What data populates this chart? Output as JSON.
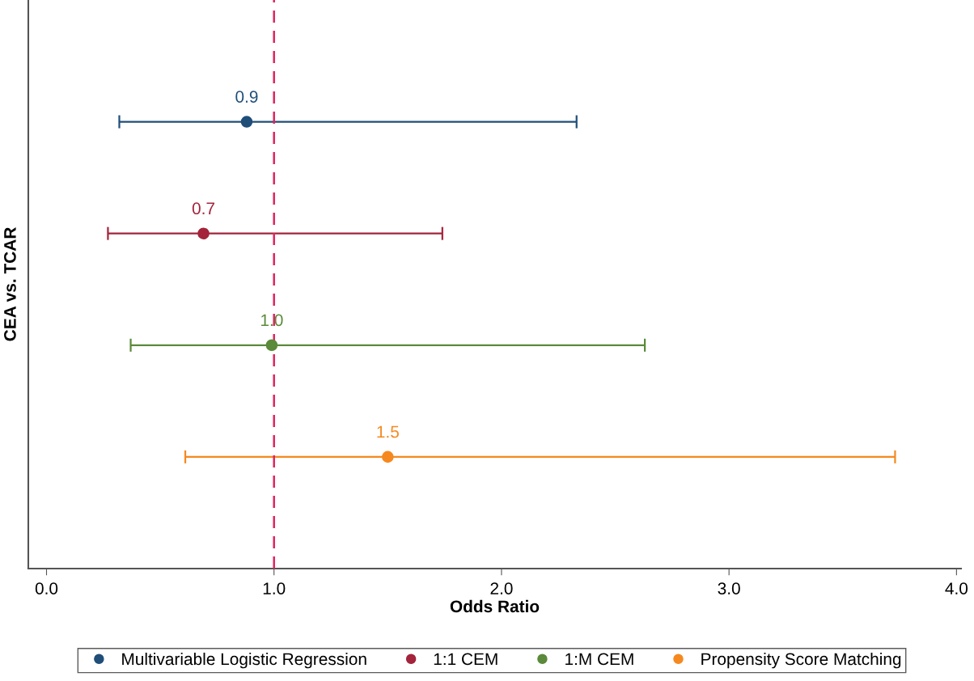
{
  "chart_data": {
    "type": "scatter",
    "orientation": "horizontal",
    "xlabel": "Odds Ratio",
    "ylabel": "CEA vs. TCAR",
    "categories": [
      null,
      null,
      null,
      null
    ],
    "series": [
      {
        "name": "Multivariable Logistic Regression",
        "color": "#1f4e79",
        "values": [
          0.88,
          null,
          null,
          null
        ],
        "errors": [
          [
            0.32,
            2.33
          ],
          null,
          null,
          null
        ],
        "value_labels": [
          "0.9",
          null,
          null,
          null
        ]
      },
      {
        "name": "1:1 CEM",
        "color": "#a3243b",
        "values": [
          null,
          0.69,
          null,
          null
        ],
        "errors": [
          null,
          [
            0.27,
            1.74
          ],
          null,
          null
        ],
        "value_labels": [
          null,
          "0.7",
          null,
          null
        ]
      },
      {
        "name": "1:M CEM",
        "color": "#5b8a3a",
        "values": [
          null,
          null,
          0.99,
          null
        ],
        "errors": [
          null,
          null,
          [
            0.37,
            2.63
          ],
          null
        ],
        "value_labels": [
          null,
          null,
          "1.0",
          null
        ]
      },
      {
        "name": "Propensity Score Matching",
        "color": "#f5891f",
        "values": [
          null,
          null,
          null,
          1.5
        ],
        "errors": [
          null,
          null,
          null,
          [
            0.61,
            3.73
          ]
        ],
        "value_labels": [
          null,
          null,
          null,
          "1.5"
        ]
      }
    ],
    "xlim": [
      -0.08,
      4.02
    ],
    "xticks": [
      {
        "value": 0,
        "label": "0.0"
      },
      {
        "value": 1,
        "label": "1.0"
      },
      {
        "value": 2,
        "label": "2.0"
      },
      {
        "value": 3,
        "label": "3.0"
      },
      {
        "value": 4,
        "label": "4.0"
      }
    ],
    "ref_lines": [
      {
        "axis": "x",
        "value": 1,
        "color": "#e0245e",
        "line_style": "dashed"
      }
    ],
    "marker": "circle",
    "grid": false,
    "legend": "bottom"
  }
}
